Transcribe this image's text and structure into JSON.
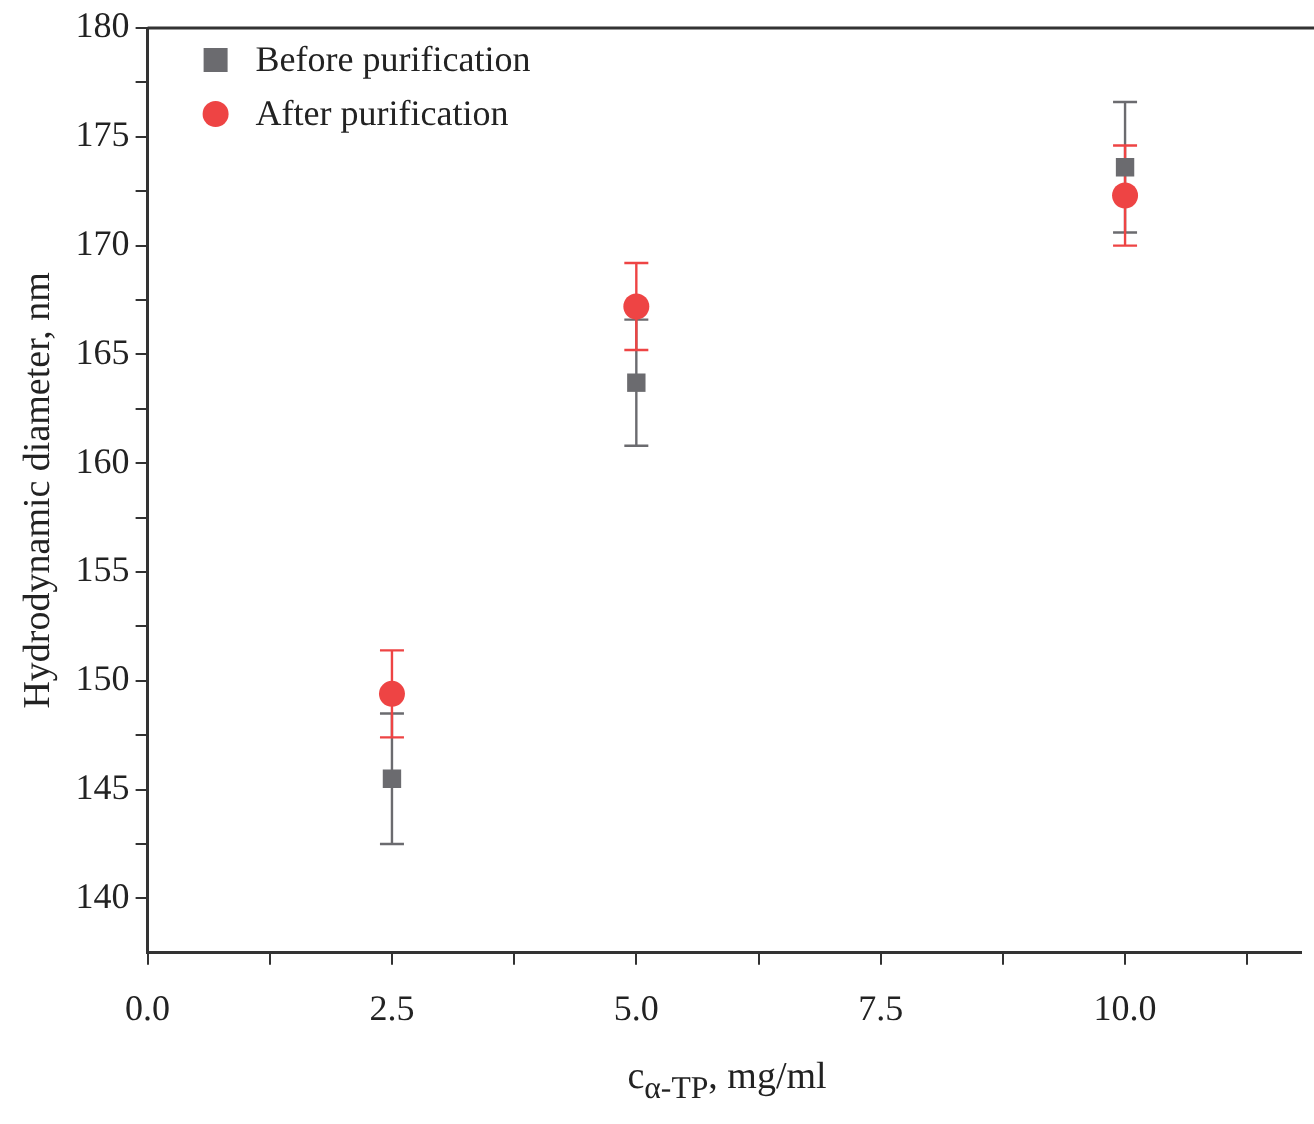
{
  "chart_data": {
    "type": "scatter",
    "xlabel": "c$_{α-TP}$, mg/ml",
    "ylabel": "Hydrodynamic diameter, nm",
    "x": [
      2.5,
      5.0,
      10.0
    ],
    "series": [
      {
        "name": "Before purification",
        "color": "#6b6b6f",
        "marker": "square",
        "values": [
          145.5,
          163.7,
          173.6
        ],
        "errors": [
          3.0,
          2.9,
          3.0
        ]
      },
      {
        "name": "After purification",
        "color": "#ee4444",
        "marker": "circle",
        "values": [
          149.4,
          167.2,
          172.3
        ],
        "errors": [
          2.0,
          2.0,
          2.3
        ]
      }
    ],
    "xlim": [
      0,
      11.8
    ],
    "xticks": [
      {
        "value": 0,
        "label": "0.0"
      },
      {
        "value": 1.25,
        "label": null
      },
      {
        "value": 2.5,
        "label": "2.5"
      },
      {
        "value": 3.75,
        "label": null
      },
      {
        "value": 5,
        "label": "5.0"
      },
      {
        "value": 6.25,
        "label": null
      },
      {
        "value": 7.5,
        "label": "7.5"
      },
      {
        "value": 8.75,
        "label": null
      },
      {
        "value": 10,
        "label": "10.0"
      },
      {
        "value": 11.25,
        "label": null
      }
    ],
    "ylim": [
      137.5,
      180
    ],
    "yticks": [
      140,
      {
        "value": 142.5,
        "label": null
      },
      145,
      {
        "value": 147.5,
        "label": null
      },
      150,
      {
        "value": 152.5,
        "label": null
      },
      155,
      {
        "value": 157.5,
        "label": null
      },
      160,
      {
        "value": 162.5,
        "label": null
      },
      165,
      {
        "value": 167.5,
        "label": null
      },
      170,
      {
        "value": 172.5,
        "label": null
      },
      175,
      {
        "value": 177.5,
        "label": null
      },
      180
    ],
    "legend": "top left",
    "grid": false
  }
}
